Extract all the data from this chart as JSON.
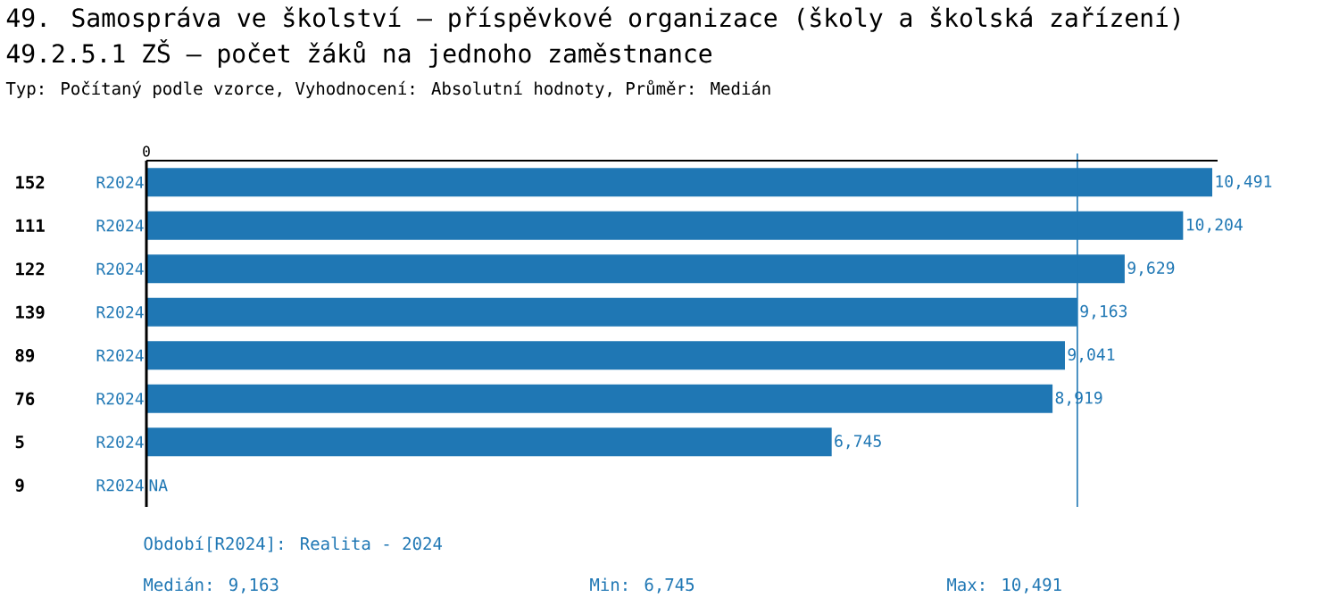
{
  "chart_data": {
    "type": "bar",
    "orientation": "horizontal",
    "title": "49. Samospráva ve školství – příspěvkové organizace (školy a školská zařízení)",
    "subtitle": "49.2.5.1 ZŠ – počet žáků na jednoho zaměstnance",
    "categories": [
      "152",
      "111",
      "122",
      "139",
      "89",
      "76",
      "5",
      "9"
    ],
    "series": [
      {
        "name": "R2024",
        "color": "#1f77b4",
        "values": [
          10491,
          10204,
          9629,
          9163,
          9041,
          8919,
          6745,
          null
        ],
        "value_labels": [
          "10,491",
          "10,204",
          "9,629",
          "9,163",
          "9,041",
          "8,919",
          "6,745",
          "NA"
        ]
      }
    ],
    "ref_lines": [
      {
        "axis": "x",
        "value": 9163,
        "color": "#1f77b4"
      }
    ],
    "annotations": [
      "0",
      "Typ: Počítaný podle vzorce, Vyhodnocení: Absolutní hodnoty, Průměr: Medián",
      "Období[R2024]: Realita - 2024",
      "Medián: 9,163",
      "Min: 6,745",
      "Max: 10,491"
    ]
  }
}
